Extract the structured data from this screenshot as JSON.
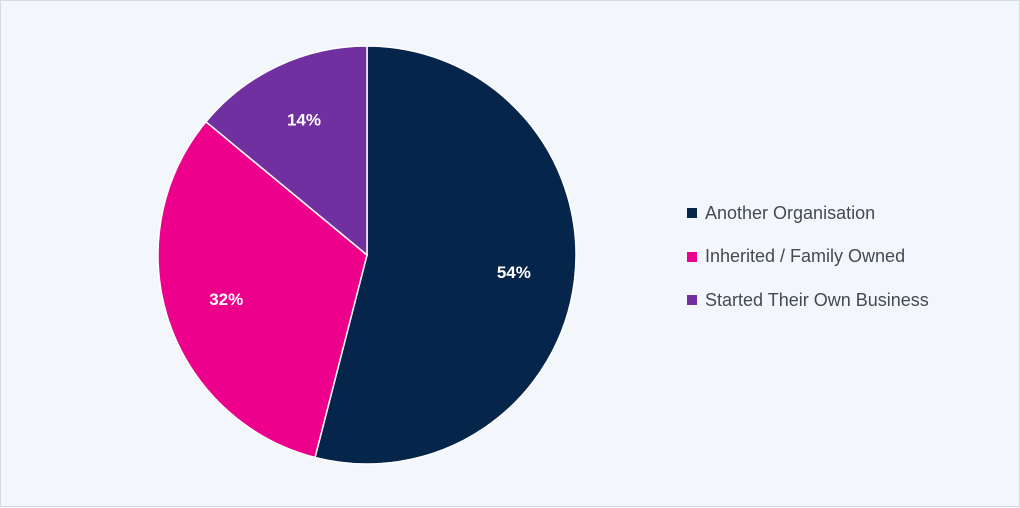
{
  "chart_data": {
    "type": "pie",
    "slices": [
      {
        "name": "Another Organisation",
        "value": 54,
        "label": "54%",
        "color": "#06254a"
      },
      {
        "name": "Inherited / Family Owned",
        "value": 32,
        "label": "32%",
        "color": "#ec008c"
      },
      {
        "name": "Started Their Own Business",
        "value": 14,
        "label": "14%",
        "color": "#7030a0"
      }
    ],
    "start_angle_deg": 0,
    "direction": "clockwise",
    "legend_position": "right"
  }
}
